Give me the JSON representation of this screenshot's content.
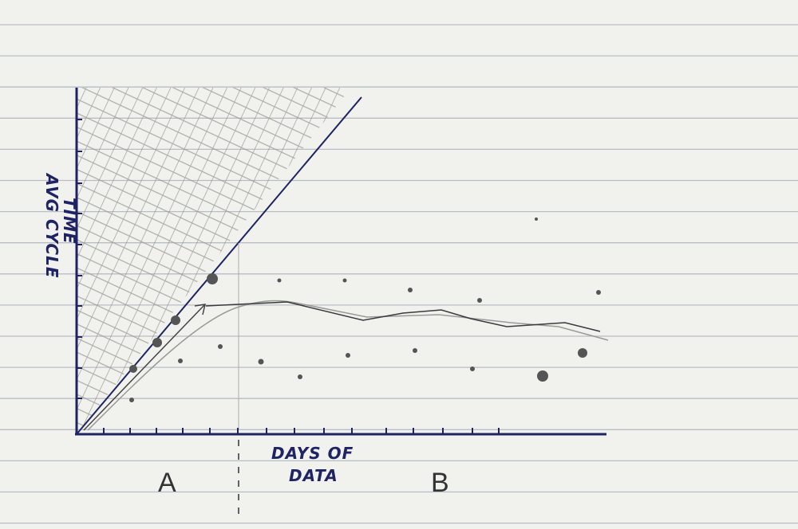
{
  "y_axis_label": {
    "lines": [
      "AVG CYCLE",
      "TIME"
    ]
  },
  "x_axis_label": {
    "lines": [
      "DAYS OF",
      "DATA"
    ]
  },
  "regions": [
    {
      "label": "A"
    },
    {
      "label": "B"
    }
  ]
}
